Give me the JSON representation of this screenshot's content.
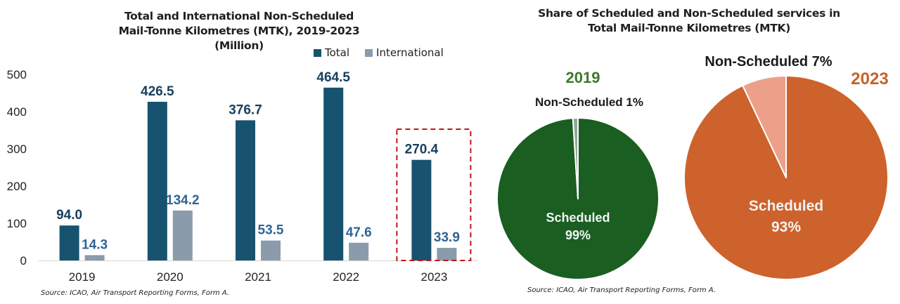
{
  "chart_data": [
    {
      "type": "bar",
      "title": "Total and International Non-Scheduled Mail-Tonne Kilometres (MTK), 2019-2023 (Million)",
      "title_lines": [
        "Total and International Non-Scheduled",
        "Mail-Tonne Kilometres (MTK), 2019-2023",
        "(Million)"
      ],
      "categories": [
        "2019",
        "2020",
        "2021",
        "2022",
        "2023"
      ],
      "series": [
        {
          "name": "Total",
          "color": "#17536f",
          "label_color": "#17405e",
          "values": [
            94.0,
            426.5,
            376.7,
            464.5,
            270.4
          ],
          "labels": [
            "94.0",
            "426.5",
            "376.7",
            "464.5",
            "270.4"
          ]
        },
        {
          "name": "International",
          "color": "#8a9bab",
          "label_color": "#2f6497",
          "values": [
            14.3,
            134.2,
            53.5,
            47.6,
            33.9
          ],
          "labels": [
            "14.3",
            "134.2",
            "53.5",
            "47.6",
            "33.9"
          ]
        }
      ],
      "xlabel": "",
      "ylabel": "",
      "ylim": [
        0,
        500
      ],
      "yticks": [
        0,
        100,
        200,
        300,
        400,
        500
      ],
      "ytick_labels": [
        "0",
        "100",
        "200",
        "300",
        "400",
        "500"
      ],
      "grid": false,
      "legend": "top-right",
      "highlight": {
        "category": "2023",
        "style": "dashed-box",
        "color": "#c0161c"
      },
      "source": "Source: ICAO, Air Transport Reporting Forms, Form A."
    },
    {
      "type": "pie",
      "title": "Share of Scheduled and Non-Scheduled services in Total Mail-Tonne Kilometres (MTK)",
      "title_lines": [
        "Share of Scheduled and Non-Scheduled services in",
        "Total Mail-Tonne Kilometres (MTK)"
      ],
      "pies": [
        {
          "year": "2019",
          "year_color": "#3c7a2a",
          "slices": [
            {
              "name": "Scheduled",
              "value": 99,
              "color": "#1a5e22",
              "label_line1": "Scheduled",
              "label_line2": "99%"
            },
            {
              "name": "Non-Scheduled",
              "value": 1,
              "color": "#8fa796",
              "label": "Non-Scheduled 1%"
            }
          ]
        },
        {
          "year": "2023",
          "year_color": "#c8612b",
          "slices": [
            {
              "name": "Scheduled",
              "value": 93,
              "color": "#cd622c",
              "label_line1": "Scheduled",
              "label_line2": "93%"
            },
            {
              "name": "Non-Scheduled",
              "value": 7,
              "color": "#eca08a",
              "label": "Non-Scheduled 7%"
            }
          ]
        }
      ],
      "source": "Source: ICAO, Air Transport Reporting Forms, Form A."
    }
  ]
}
